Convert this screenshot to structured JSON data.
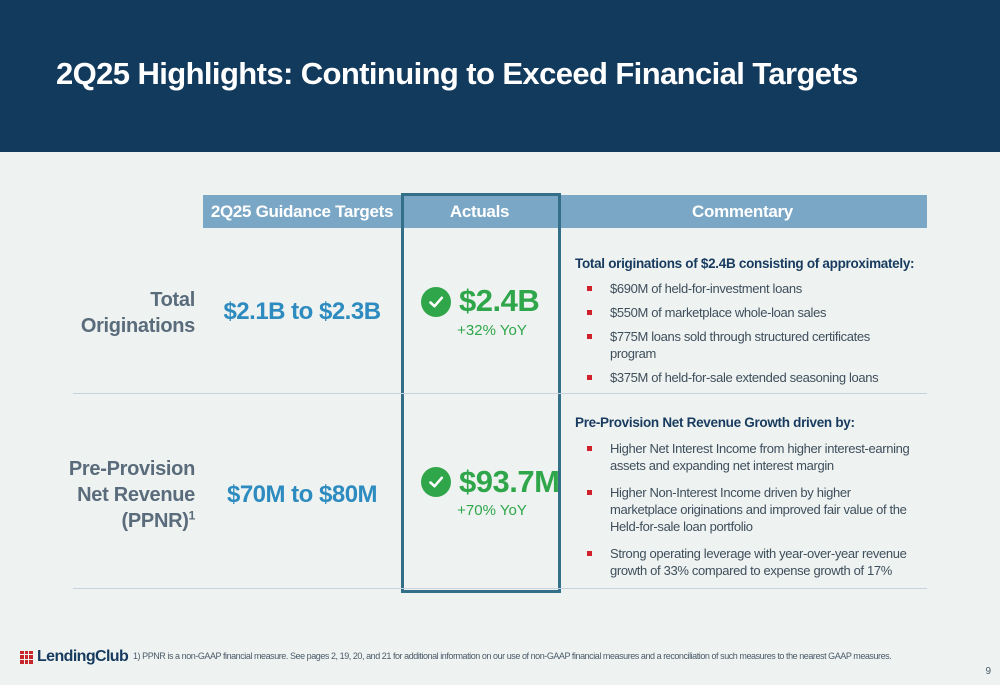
{
  "header": {
    "title": "2Q25 Highlights: Continuing to Exceed Financial Targets",
    "background_color": "#123a5d"
  },
  "table": {
    "columns": [
      "2Q25 Guidance Targets",
      "Actuals",
      "Commentary"
    ],
    "rows": [
      {
        "label_lines": [
          "Total",
          "Originations"
        ],
        "target": "$2.1B to $2.3B",
        "actual": "$2.4B",
        "yoy": "+32% YoY",
        "status_icon": "check-circle-icon",
        "commentary_title": "Total originations of $2.4B consisting of approximately:",
        "bullets": [
          "$690M of held-for-investment loans",
          "$550M of marketplace whole-loan sales",
          "$775M loans sold through structured certificates program",
          "$375M of held-for-sale extended seasoning loans"
        ]
      },
      {
        "label_lines": [
          "Pre-Provision",
          "Net Revenue",
          "(PPNR)"
        ],
        "label_sup": "1",
        "target": "$70M to $80M",
        "actual": "$93.7M",
        "yoy": "+70% YoY",
        "status_icon": "check-circle-icon",
        "commentary_title": "Pre-Provision Net Revenue Growth driven by:",
        "bullets": [
          "Higher Net Interest Income from higher interest-earning assets and expanding net interest margin",
          "Higher Non-Interest Income driven by higher marketplace originations and improved fair value of the Held-for-sale loan portfolio",
          "Strong operating leverage with year-over-year revenue growth of 33% compared to expense growth of 17%"
        ]
      }
    ]
  },
  "colors": {
    "header_cells": "#7ba7c7",
    "targets": "#2d8bc0",
    "actuals": "#2fa64a",
    "bullet_marker": "#d0202c",
    "highlight_border": "#346f8a"
  },
  "footer": {
    "logo_text": "LendingClub",
    "footnote": "1)   PPNR is a non-GAAP financial measure. See pages 2, 19, 20, and 21 for additional information on our use of non-GAAP financial measures and a reconciliation of such measures to the nearest GAAP measures.",
    "page_number": "9"
  }
}
